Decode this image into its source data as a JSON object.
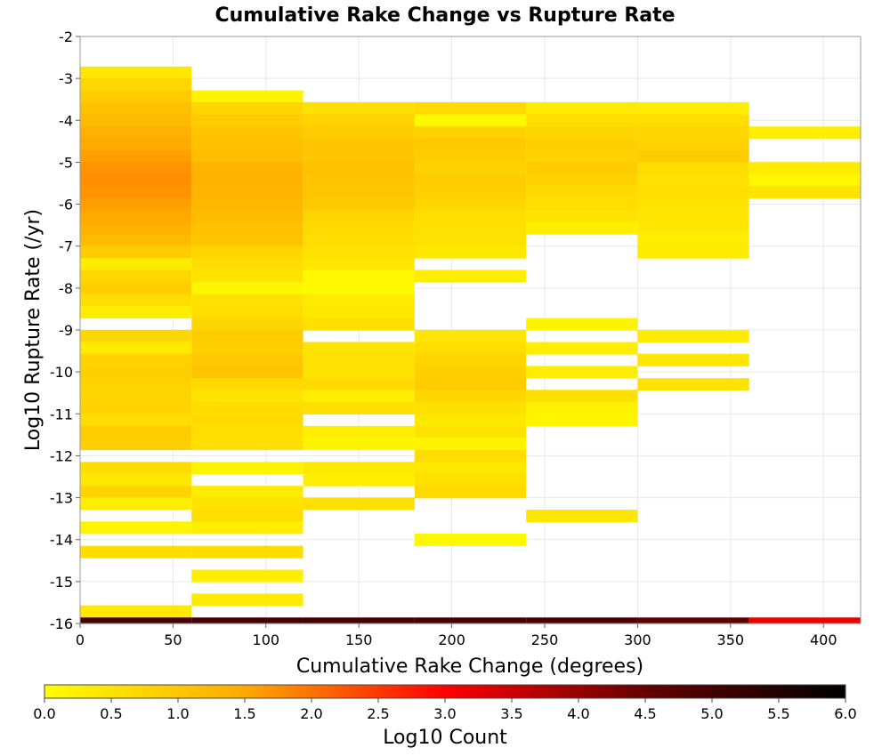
{
  "chart_data": {
    "type": "heatmap",
    "title": "Cumulative Rake Change vs Rupture Rate",
    "xlabel": "Cumulative Rake Change (degrees)",
    "ylabel": "Log10 Rupture Rate (/yr)",
    "xlim": [
      0,
      420
    ],
    "ylim": [
      -16,
      -2
    ],
    "xticks": [
      0,
      50,
      100,
      150,
      200,
      250,
      300,
      350,
      400
    ],
    "yticks": [
      -2,
      -3,
      -4,
      -5,
      -6,
      -7,
      -8,
      -9,
      -10,
      -11,
      -12,
      -13,
      -14,
      -15,
      -16
    ],
    "grid": true,
    "x_bin_width": 60,
    "y_bin_height": 0.2857,
    "colorbar": {
      "label": "Log10 Count",
      "min": 0.0,
      "max": 6.0,
      "ticks": [
        "0.0",
        "0.5",
        "1.0",
        "1.5",
        "2.0",
        "2.5",
        "3.0",
        "3.5",
        "4.0",
        "4.5",
        "5.0",
        "5.5",
        "6.0"
      ],
      "colors": [
        "#ffff00",
        "#ffaa00",
        "#ff0000",
        "#660000",
        "#000000"
      ],
      "placement": "bottom"
    },
    "columns": [
      {
        "x_start": 0,
        "cells": [
          {
            "y": -2.86,
            "v": 0.4
          },
          {
            "y": -3.14,
            "v": 0.7
          },
          {
            "y": -3.43,
            "v": 0.9
          },
          {
            "y": -3.71,
            "v": 1.1
          },
          {
            "y": -4.0,
            "v": 1.2
          },
          {
            "y": -4.29,
            "v": 1.4
          },
          {
            "y": -4.57,
            "v": 1.5
          },
          {
            "y": -4.86,
            "v": 1.6
          },
          {
            "y": -5.14,
            "v": 1.7
          },
          {
            "y": -5.43,
            "v": 1.75
          },
          {
            "y": -5.71,
            "v": 1.7
          },
          {
            "y": -6.0,
            "v": 1.6
          },
          {
            "y": -6.29,
            "v": 1.5
          },
          {
            "y": -6.57,
            "v": 1.35
          },
          {
            "y": -6.86,
            "v": 1.2
          },
          {
            "y": -7.14,
            "v": 0.9
          },
          {
            "y": -7.43,
            "v": 0.35
          },
          {
            "y": -7.71,
            "v": 0.7
          },
          {
            "y": -8.0,
            "v": 0.85
          },
          {
            "y": -8.29,
            "v": 0.6
          },
          {
            "y": -8.57,
            "v": 0.3
          },
          {
            "y": -9.14,
            "v": 0.7
          },
          {
            "y": -9.43,
            "v": 0.35
          },
          {
            "y": -9.71,
            "v": 0.8
          },
          {
            "y": -10.0,
            "v": 0.85
          },
          {
            "y": -10.29,
            "v": 0.8
          },
          {
            "y": -10.57,
            "v": 0.75
          },
          {
            "y": -10.86,
            "v": 0.8
          },
          {
            "y": -11.14,
            "v": 0.6
          },
          {
            "y": -11.43,
            "v": 0.9
          },
          {
            "y": -11.71,
            "v": 0.85
          },
          {
            "y": -12.29,
            "v": 0.6
          },
          {
            "y": -12.57,
            "v": 0.4
          },
          {
            "y": -12.86,
            "v": 0.75
          },
          {
            "y": -13.14,
            "v": 0.3
          },
          {
            "y": -13.71,
            "v": 0.2
          },
          {
            "y": -14.29,
            "v": 0.6
          },
          {
            "y": -15.71,
            "v": 0.4
          },
          {
            "y": -16.0,
            "v": 5.0
          }
        ]
      },
      {
        "x_start": 60,
        "cells": [
          {
            "y": -3.43,
            "v": 0.2
          },
          {
            "y": -3.71,
            "v": 0.7
          },
          {
            "y": -4.0,
            "v": 0.9
          },
          {
            "y": -4.29,
            "v": 1.0
          },
          {
            "y": -4.57,
            "v": 1.1
          },
          {
            "y": -4.86,
            "v": 1.15
          },
          {
            "y": -5.14,
            "v": 1.3
          },
          {
            "y": -5.43,
            "v": 1.35
          },
          {
            "y": -5.71,
            "v": 1.3
          },
          {
            "y": -6.0,
            "v": 1.25
          },
          {
            "y": -6.29,
            "v": 1.2
          },
          {
            "y": -6.57,
            "v": 1.1
          },
          {
            "y": -6.86,
            "v": 1.0
          },
          {
            "y": -7.14,
            "v": 0.75
          },
          {
            "y": -7.43,
            "v": 0.6
          },
          {
            "y": -7.71,
            "v": 0.5
          },
          {
            "y": -8.0,
            "v": 0.15
          },
          {
            "y": -8.29,
            "v": 0.55
          },
          {
            "y": -8.57,
            "v": 0.6
          },
          {
            "y": -8.86,
            "v": 0.7
          },
          {
            "y": -9.14,
            "v": 0.9
          },
          {
            "y": -9.43,
            "v": 0.85
          },
          {
            "y": -9.71,
            "v": 0.95
          },
          {
            "y": -10.0,
            "v": 1.05
          },
          {
            "y": -10.29,
            "v": 0.65
          },
          {
            "y": -10.57,
            "v": 0.5
          },
          {
            "y": -10.86,
            "v": 0.6
          },
          {
            "y": -11.14,
            "v": 0.65
          },
          {
            "y": -11.43,
            "v": 0.6
          },
          {
            "y": -11.71,
            "v": 0.55
          },
          {
            "y": -12.29,
            "v": 0.2
          },
          {
            "y": -12.86,
            "v": 0.35
          },
          {
            "y": -13.14,
            "v": 0.5
          },
          {
            "y": -13.43,
            "v": 0.6
          },
          {
            "y": -13.71,
            "v": 0.3
          },
          {
            "y": -14.29,
            "v": 0.6
          },
          {
            "y": -14.86,
            "v": 0.3
          },
          {
            "y": -15.43,
            "v": 0.35
          },
          {
            "y": -16.0,
            "v": 5.0
          }
        ]
      },
      {
        "x_start": 120,
        "cells": [
          {
            "y": -3.71,
            "v": 0.55
          },
          {
            "y": -4.0,
            "v": 0.8
          },
          {
            "y": -4.29,
            "v": 0.9
          },
          {
            "y": -4.57,
            "v": 1.0
          },
          {
            "y": -4.86,
            "v": 1.05
          },
          {
            "y": -5.14,
            "v": 1.1
          },
          {
            "y": -5.43,
            "v": 1.05
          },
          {
            "y": -5.71,
            "v": 1.0
          },
          {
            "y": -6.0,
            "v": 0.95
          },
          {
            "y": -6.29,
            "v": 0.75
          },
          {
            "y": -6.57,
            "v": 0.65
          },
          {
            "y": -6.86,
            "v": 0.6
          },
          {
            "y": -7.14,
            "v": 0.55
          },
          {
            "y": -7.43,
            "v": 0.45
          },
          {
            "y": -7.71,
            "v": 0.15
          },
          {
            "y": -8.0,
            "v": 0.1
          },
          {
            "y": -8.29,
            "v": 0.35
          },
          {
            "y": -8.57,
            "v": 0.4
          },
          {
            "y": -8.86,
            "v": 0.55
          },
          {
            "y": -9.43,
            "v": 0.5
          },
          {
            "y": -9.71,
            "v": 0.55
          },
          {
            "y": -10.0,
            "v": 0.5
          },
          {
            "y": -10.29,
            "v": 0.65
          },
          {
            "y": -10.57,
            "v": 0.3
          },
          {
            "y": -10.86,
            "v": 0.55
          },
          {
            "y": -11.43,
            "v": 0.3
          },
          {
            "y": -11.71,
            "v": 0.2
          },
          {
            "y": -12.29,
            "v": 0.4
          },
          {
            "y": -12.57,
            "v": 0.3
          },
          {
            "y": -13.14,
            "v": 0.55
          },
          {
            "y": -16.0,
            "v": 5.0
          }
        ]
      },
      {
        "x_start": 180,
        "cells": [
          {
            "y": -3.71,
            "v": 0.65
          },
          {
            "y": -4.0,
            "v": 0.1
          },
          {
            "y": -4.29,
            "v": 0.8
          },
          {
            "y": -4.57,
            "v": 0.95
          },
          {
            "y": -4.86,
            "v": 0.9
          },
          {
            "y": -5.14,
            "v": 0.8
          },
          {
            "y": -5.43,
            "v": 0.9
          },
          {
            "y": -5.71,
            "v": 0.85
          },
          {
            "y": -6.0,
            "v": 0.7
          },
          {
            "y": -6.29,
            "v": 0.6
          },
          {
            "y": -6.57,
            "v": 0.55
          },
          {
            "y": -6.86,
            "v": 0.5
          },
          {
            "y": -7.14,
            "v": 0.4
          },
          {
            "y": -7.71,
            "v": 0.3
          },
          {
            "y": -9.14,
            "v": 0.45
          },
          {
            "y": -9.43,
            "v": 0.6
          },
          {
            "y": -9.71,
            "v": 0.75
          },
          {
            "y": -10.0,
            "v": 0.85
          },
          {
            "y": -10.29,
            "v": 0.9
          },
          {
            "y": -10.57,
            "v": 0.7
          },
          {
            "y": -10.86,
            "v": 0.55
          },
          {
            "y": -11.14,
            "v": 0.4
          },
          {
            "y": -11.43,
            "v": 0.5
          },
          {
            "y": -11.71,
            "v": 0.2
          },
          {
            "y": -12.0,
            "v": 0.6
          },
          {
            "y": -12.29,
            "v": 0.4
          },
          {
            "y": -12.57,
            "v": 0.55
          },
          {
            "y": -12.86,
            "v": 0.65
          },
          {
            "y": -14.0,
            "v": 0.15
          },
          {
            "y": -16.0,
            "v": 5.0
          }
        ]
      },
      {
        "x_start": 240,
        "cells": [
          {
            "y": -3.71,
            "v": 0.35
          },
          {
            "y": -4.0,
            "v": 0.6
          },
          {
            "y": -4.29,
            "v": 0.7
          },
          {
            "y": -4.57,
            "v": 0.85
          },
          {
            "y": -4.86,
            "v": 0.8
          },
          {
            "y": -5.14,
            "v": 0.9
          },
          {
            "y": -5.43,
            "v": 0.8
          },
          {
            "y": -5.71,
            "v": 0.65
          },
          {
            "y": -6.0,
            "v": 0.6
          },
          {
            "y": -6.29,
            "v": 0.5
          },
          {
            "y": -6.57,
            "v": 0.3
          },
          {
            "y": -8.86,
            "v": 0.2
          },
          {
            "y": -9.43,
            "v": 0.3
          },
          {
            "y": -10.0,
            "v": 0.3
          },
          {
            "y": -10.57,
            "v": 0.55
          },
          {
            "y": -10.86,
            "v": 0.25
          },
          {
            "y": -11.14,
            "v": 0.2
          },
          {
            "y": -13.43,
            "v": 0.45
          },
          {
            "y": -16.0,
            "v": 4.9
          }
        ]
      },
      {
        "x_start": 300,
        "cells": [
          {
            "y": -3.71,
            "v": 0.3
          },
          {
            "y": -4.0,
            "v": 0.6
          },
          {
            "y": -4.29,
            "v": 0.7
          },
          {
            "y": -4.57,
            "v": 0.8
          },
          {
            "y": -4.86,
            "v": 0.9
          },
          {
            "y": -5.14,
            "v": 0.6
          },
          {
            "y": -5.43,
            "v": 0.55
          },
          {
            "y": -5.71,
            "v": 0.6
          },
          {
            "y": -6.0,
            "v": 0.5
          },
          {
            "y": -6.29,
            "v": 0.45
          },
          {
            "y": -6.57,
            "v": 0.4
          },
          {
            "y": -6.86,
            "v": 0.3
          },
          {
            "y": -7.14,
            "v": 0.35
          },
          {
            "y": -9.14,
            "v": 0.35
          },
          {
            "y": -9.71,
            "v": 0.45
          },
          {
            "y": -10.29,
            "v": 0.5
          },
          {
            "y": -16.0,
            "v": 4.6
          }
        ]
      },
      {
        "x_start": 360,
        "cells": [
          {
            "y": -4.29,
            "v": 0.3
          },
          {
            "y": -5.14,
            "v": 0.35
          },
          {
            "y": -5.43,
            "v": 0.15
          },
          {
            "y": -5.71,
            "v": 0.5
          },
          {
            "y": -16.0,
            "v": 3.2
          }
        ]
      }
    ]
  }
}
